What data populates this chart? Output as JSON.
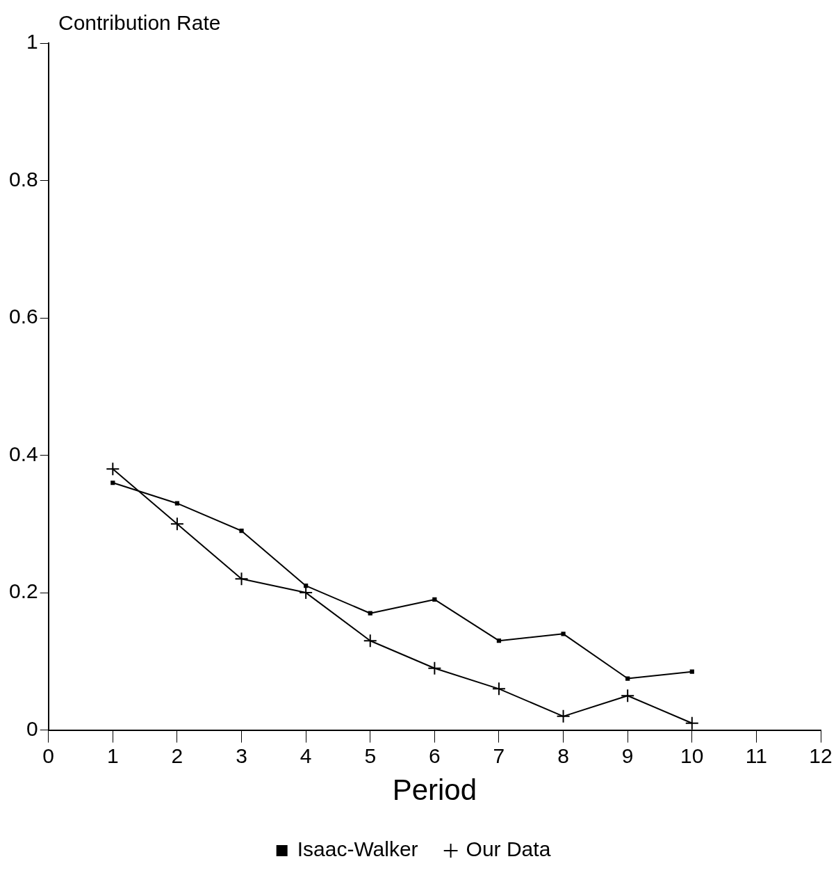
{
  "chart_data": {
    "type": "line",
    "ylabel": "Contribution Rate",
    "xlabel": "Period",
    "x": [
      1,
      2,
      3,
      4,
      5,
      6,
      7,
      8,
      9,
      10
    ],
    "xlim": [
      0,
      12
    ],
    "xticks": [
      0,
      1,
      2,
      3,
      4,
      5,
      6,
      7,
      8,
      9,
      10,
      11,
      12
    ],
    "ylim": [
      0,
      1
    ],
    "yticks": [
      0,
      0.2,
      0.4,
      0.6,
      0.8,
      1
    ],
    "grid": false,
    "legend": "bottom",
    "line_style": "solid",
    "series": [
      {
        "name": "Isaac-Walker",
        "color": "#000000",
        "marker": "square",
        "values": [
          0.36,
          0.33,
          0.29,
          0.21,
          0.17,
          0.19,
          0.13,
          0.14,
          0.075,
          0.085
        ]
      },
      {
        "name": "Our Data",
        "color": "#000000",
        "marker": "cross",
        "values": [
          0.38,
          0.3,
          0.22,
          0.2,
          0.13,
          0.09,
          0.06,
          0.02,
          0.05,
          0.01
        ]
      }
    ]
  }
}
